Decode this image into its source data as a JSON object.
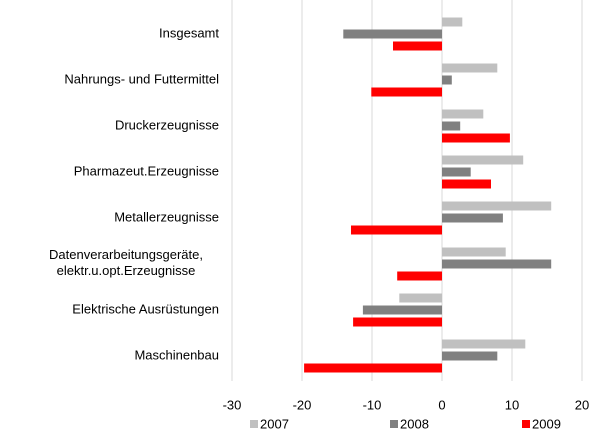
{
  "chart_data": {
    "type": "hbar",
    "categories": [
      "Insgesamt",
      "Nahrungs- und Futtermittel",
      "Druckerzeugnisse",
      "Pharmazeut.Erzeugnisse",
      "Metallerzeugnisse",
      "Datenverarbeitungsgeräte,\nelektr.u.opt.Erzeugnisse",
      "Elektrische Ausrüstungen",
      "Maschinenbau"
    ],
    "series": [
      {
        "name": "2007",
        "color": "#c0c0c0",
        "values": [
          2.9,
          7.9,
          5.9,
          11.6,
          15.6,
          9.1,
          -6.1,
          11.9
        ]
      },
      {
        "name": "2008",
        "color": "#808080",
        "values": [
          -14.1,
          1.4,
          2.6,
          4.1,
          8.7,
          15.6,
          -11.3,
          7.9
        ]
      },
      {
        "name": "2009",
        "color": "#ff0000",
        "values": [
          -7.0,
          -10.1,
          9.7,
          7.0,
          -13.0,
          -6.4,
          -12.7,
          -19.7
        ]
      }
    ],
    "xlim": [
      -30,
      20
    ],
    "xticks": [
      -30,
      -20,
      -10,
      0,
      10,
      20
    ],
    "grid": true,
    "legend": "bottom"
  }
}
